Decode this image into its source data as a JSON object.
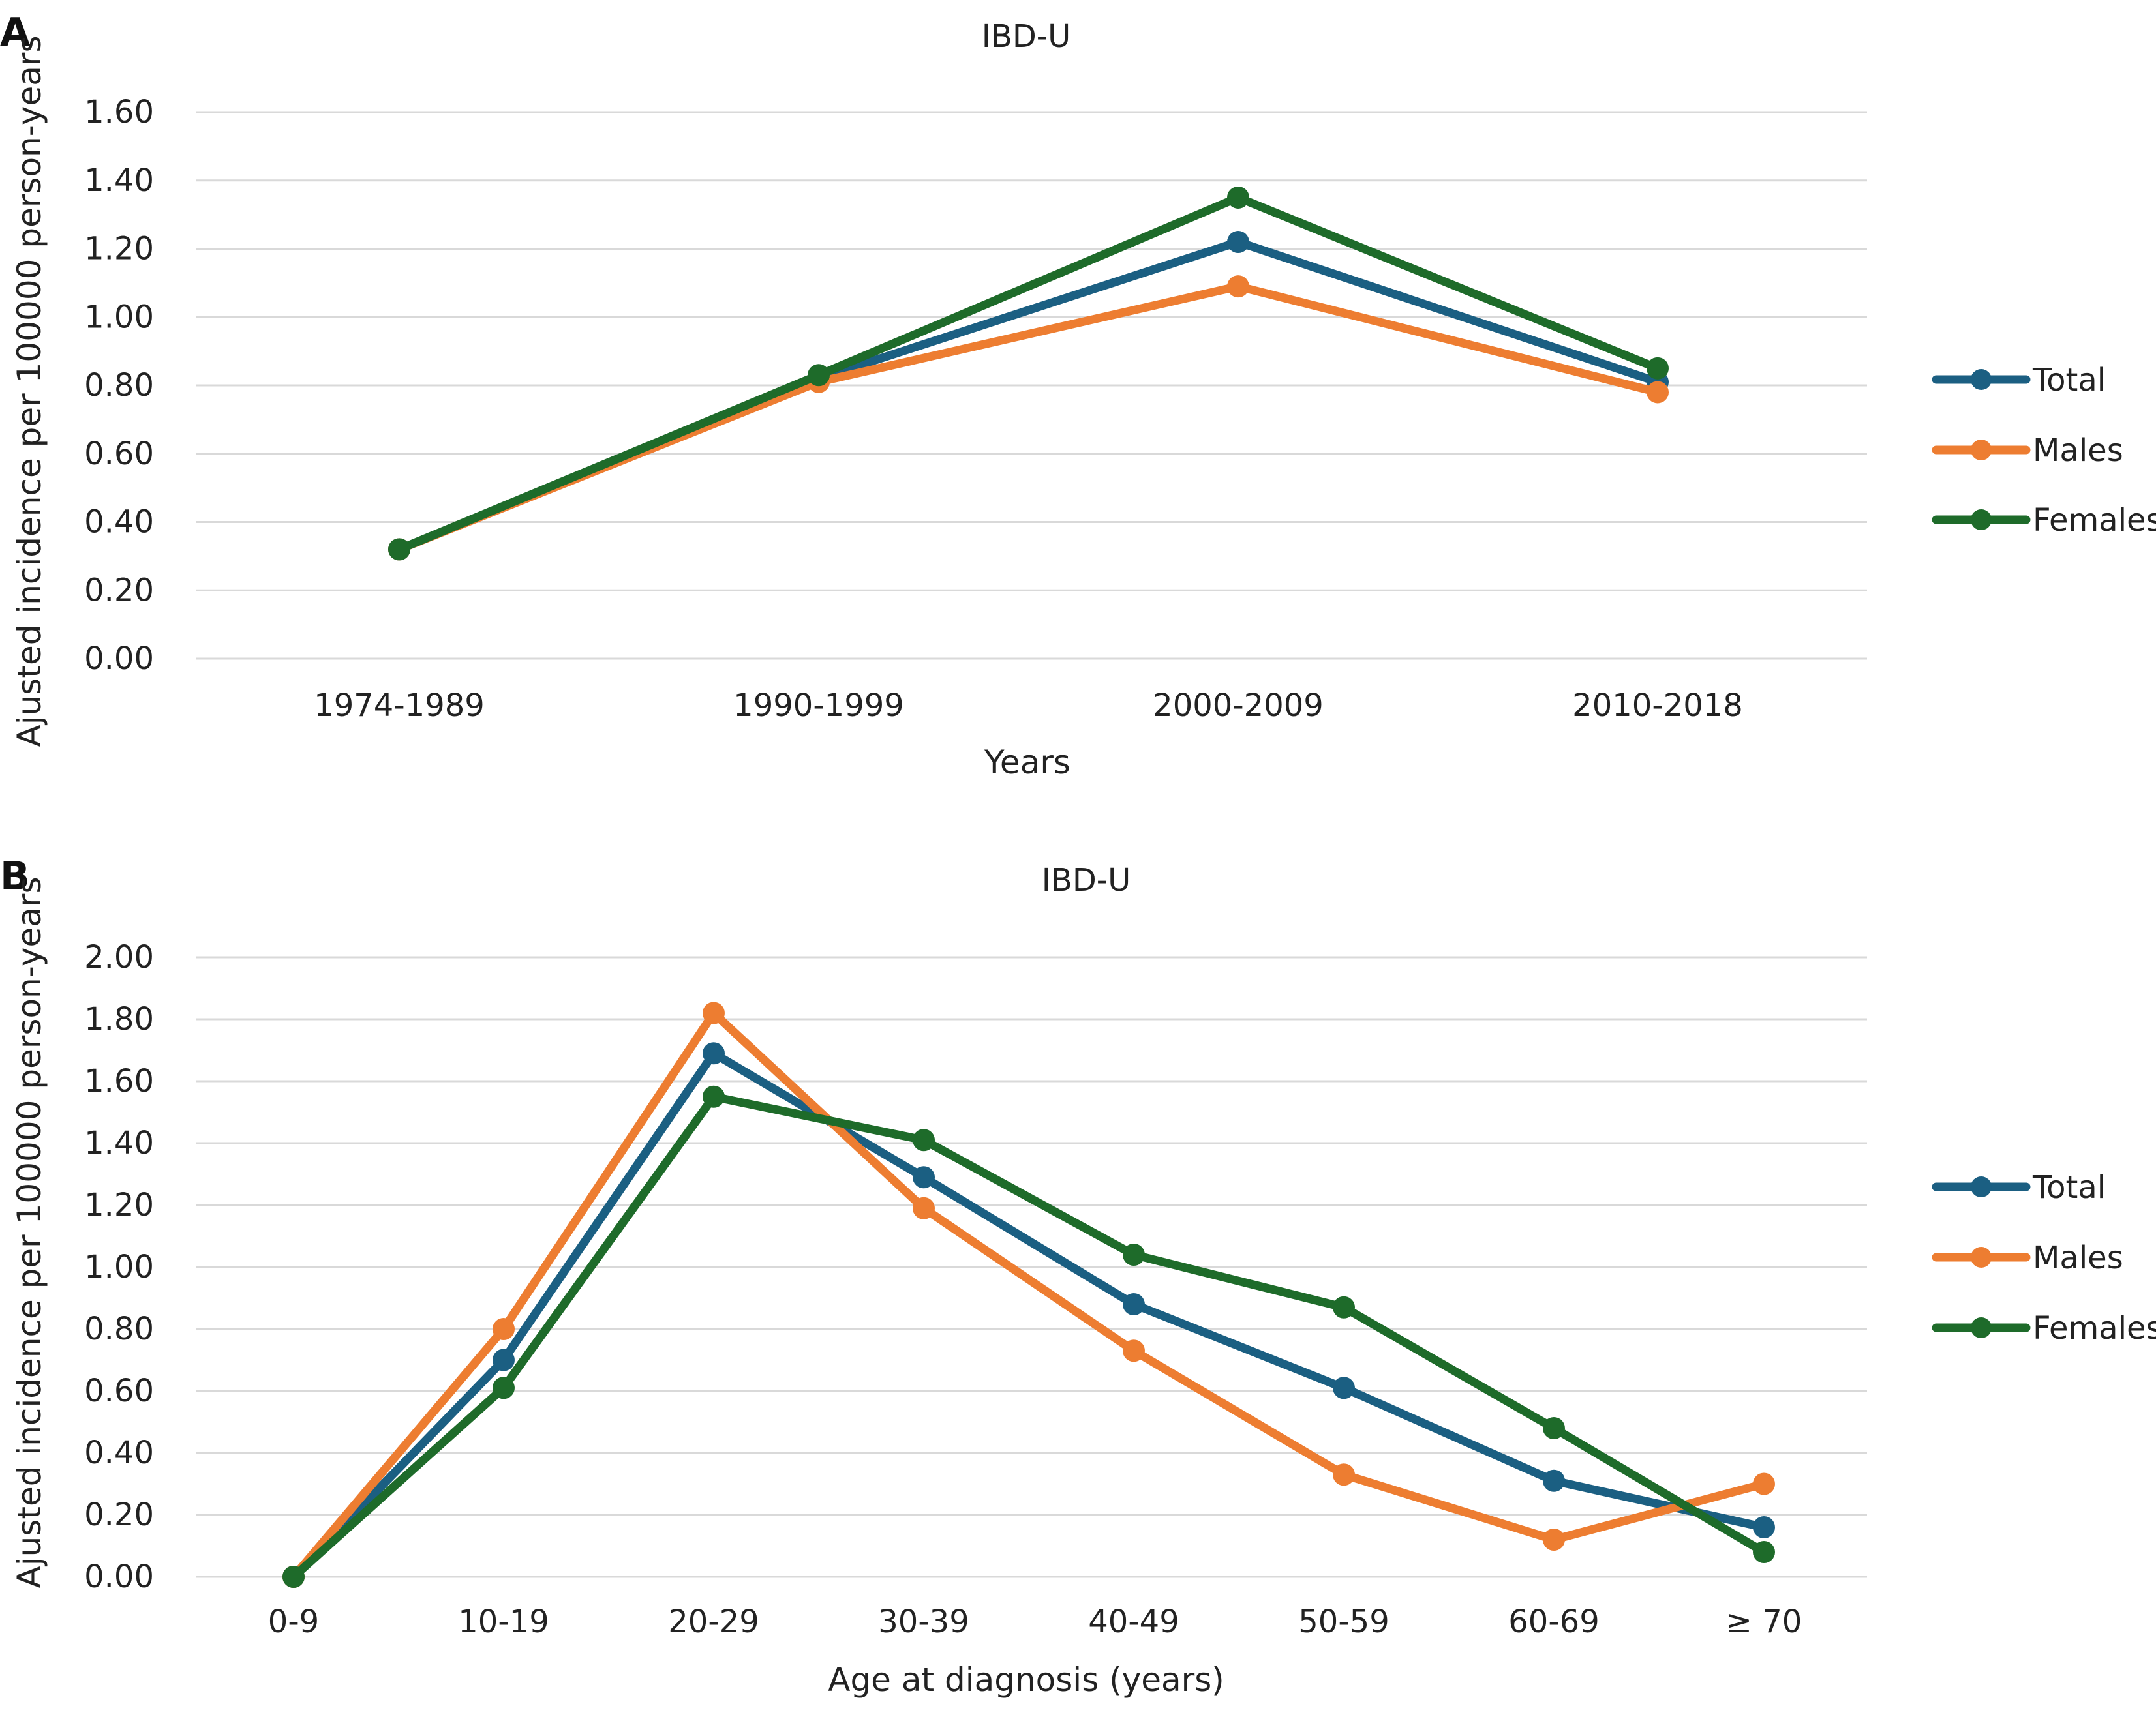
{
  "chart_data": [
    {
      "type": "line",
      "panel": "A",
      "title": "IBD-U",
      "xlabel": "Years",
      "ylabel": "Ajusted incidence per 100000 person-years",
      "categories": [
        "1974-1989",
        "1990-1999",
        "2000-2009",
        "2010-2018"
      ],
      "ylim": [
        0,
        1.6
      ],
      "yticks": [
        "0.00",
        "0.20",
        "0.40",
        "0.60",
        "0.80",
        "1.00",
        "1.20",
        "1.40",
        "1.60"
      ],
      "grid": true,
      "legend_position": "right",
      "series": [
        {
          "name": "Total",
          "color": "#1b5f82",
          "values": [
            0.32,
            0.82,
            1.22,
            0.81
          ]
        },
        {
          "name": "Males",
          "color": "#ed7d31",
          "values": [
            0.32,
            0.81,
            1.09,
            0.78
          ]
        },
        {
          "name": "Females",
          "color": "#1e6b2a",
          "values": [
            0.32,
            0.83,
            1.35,
            0.85
          ]
        }
      ]
    },
    {
      "type": "line",
      "panel": "B",
      "title": "IBD-U",
      "xlabel": "Age at diagnosis (years)",
      "ylabel": "Ajusted incidence per 100000 person-years",
      "categories": [
        "0-9",
        "10-19",
        "20-29",
        "30-39",
        "40-49",
        "50-59",
        "60-69",
        "≥ 70"
      ],
      "ylim": [
        0,
        2.0
      ],
      "yticks": [
        "0.00",
        "0.20",
        "0.40",
        "0.60",
        "0.80",
        "1.00",
        "1.20",
        "1.40",
        "1.60",
        "1.80",
        "2.00"
      ],
      "grid": true,
      "legend_position": "right",
      "series": [
        {
          "name": "Total",
          "color": "#1b5f82",
          "values": [
            0.0,
            0.7,
            1.69,
            1.29,
            0.88,
            0.61,
            0.31,
            0.16
          ]
        },
        {
          "name": "Males",
          "color": "#ed7d31",
          "values": [
            0.0,
            0.8,
            1.82,
            1.19,
            0.73,
            0.33,
            0.12,
            0.3
          ]
        },
        {
          "name": "Females",
          "color": "#1e6b2a",
          "values": [
            0.0,
            0.61,
            1.55,
            1.41,
            1.04,
            0.87,
            0.48,
            0.08
          ]
        }
      ]
    }
  ]
}
